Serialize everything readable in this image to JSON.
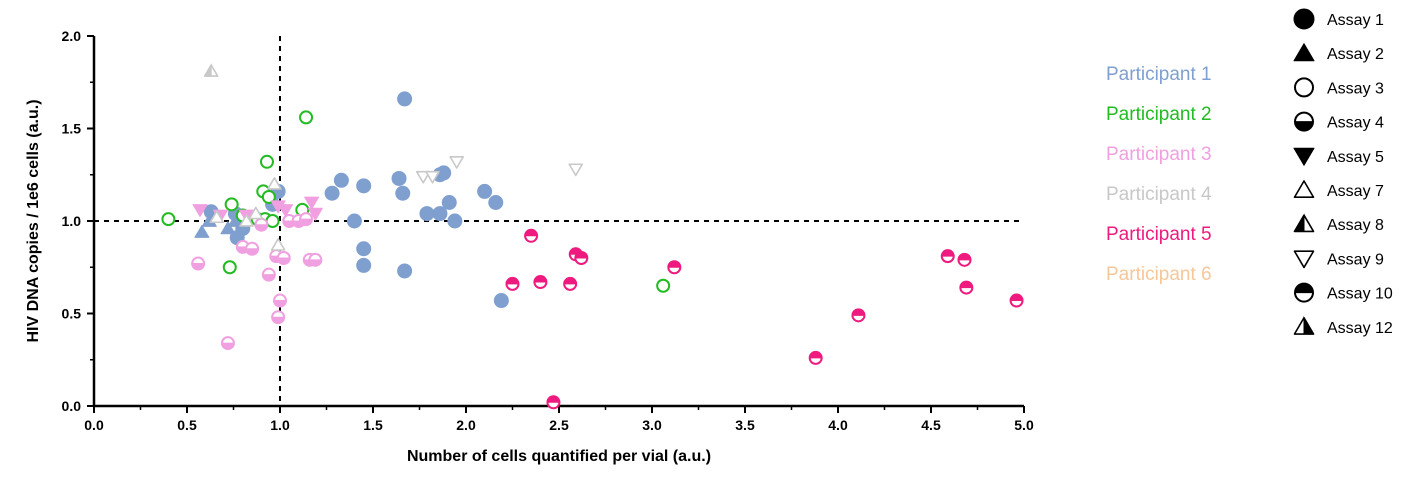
{
  "chart_data": {
    "type": "scatter",
    "title": "",
    "xlabel": "Number of cells quantified per vial (a.u.)",
    "ylabel": "HIV DNA copies / 1e6 cells (a.u.)",
    "xlim": [
      0,
      5
    ],
    "ylim": [
      0,
      2
    ],
    "x_ticks": [
      "0.0",
      "0.5",
      "1.0",
      "1.5",
      "2.0",
      "2.5",
      "3.0",
      "3.5",
      "4.0",
      "4.5",
      "5.0"
    ],
    "y_ticks": [
      "0.0",
      "0.5",
      "1.0",
      "1.5",
      "2.0"
    ],
    "reference_lines": {
      "x": 1.0,
      "y": 1.0,
      "style": "dashed"
    },
    "grid": false,
    "legend_placement": "right",
    "participants": [
      {
        "name": "Participant 1",
        "color": "#7f9fcf"
      },
      {
        "name": "Participant 2",
        "color": "#22bb22"
      },
      {
        "name": "Participant 3",
        "color": "#f0a0e0"
      },
      {
        "name": "Participant 4",
        "color": "#c8c8c8"
      },
      {
        "name": "Participant 5",
        "color": "#ee1a7f"
      },
      {
        "name": "Participant 6",
        "color": "#f5c79a"
      }
    ],
    "assays": [
      {
        "name": "Assay 1",
        "symbol": "circle-filled"
      },
      {
        "name": "Assay 2",
        "symbol": "triangle-up-filled"
      },
      {
        "name": "Assay 3",
        "symbol": "circle-open"
      },
      {
        "name": "Assay 4",
        "symbol": "circle-bottom-half"
      },
      {
        "name": "Assay 5",
        "symbol": "triangle-down-filled"
      },
      {
        "name": "Assay 7",
        "symbol": "triangle-up-open"
      },
      {
        "name": "Assay 8",
        "symbol": "triangle-up-left-half"
      },
      {
        "name": "Assay 9",
        "symbol": "triangle-down-open"
      },
      {
        "name": "Assay 10",
        "symbol": "circle-top-half"
      },
      {
        "name": "Assay 12",
        "symbol": "triangle-up-right-half"
      }
    ],
    "series": [
      {
        "participant": "Participant 1",
        "points": [
          {
            "x": 1.67,
            "y": 1.66,
            "assay": "Assay 1"
          },
          {
            "x": 1.33,
            "y": 1.22,
            "assay": "Assay 1"
          },
          {
            "x": 1.28,
            "y": 1.15,
            "assay": "Assay 1"
          },
          {
            "x": 1.45,
            "y": 1.19,
            "assay": "Assay 1"
          },
          {
            "x": 1.64,
            "y": 1.23,
            "assay": "Assay 1"
          },
          {
            "x": 1.66,
            "y": 1.15,
            "assay": "Assay 1"
          },
          {
            "x": 1.86,
            "y": 1.25,
            "assay": "Assay 1"
          },
          {
            "x": 1.88,
            "y": 1.26,
            "assay": "Assay 1"
          },
          {
            "x": 1.91,
            "y": 1.1,
            "assay": "Assay 1"
          },
          {
            "x": 1.79,
            "y": 1.04,
            "assay": "Assay 1"
          },
          {
            "x": 1.86,
            "y": 1.04,
            "assay": "Assay 1"
          },
          {
            "x": 1.94,
            "y": 1.0,
            "assay": "Assay 1"
          },
          {
            "x": 2.1,
            "y": 1.16,
            "assay": "Assay 1"
          },
          {
            "x": 2.16,
            "y": 1.1,
            "assay": "Assay 1"
          },
          {
            "x": 1.4,
            "y": 1.0,
            "assay": "Assay 1"
          },
          {
            "x": 1.45,
            "y": 0.85,
            "assay": "Assay 1"
          },
          {
            "x": 1.45,
            "y": 0.76,
            "assay": "Assay 1"
          },
          {
            "x": 1.67,
            "y": 0.73,
            "assay": "Assay 1"
          },
          {
            "x": 2.19,
            "y": 0.57,
            "assay": "Assay 1"
          },
          {
            "x": 0.63,
            "y": 1.05,
            "assay": "Assay 1"
          },
          {
            "x": 0.76,
            "y": 1.04,
            "assay": "Assay 1"
          },
          {
            "x": 0.8,
            "y": 0.96,
            "assay": "Assay 1"
          },
          {
            "x": 0.77,
            "y": 0.91,
            "assay": "Assay 1"
          },
          {
            "x": 0.99,
            "y": 1.16,
            "assay": "Assay 1"
          },
          {
            "x": 0.96,
            "y": 1.09,
            "assay": "Assay 1"
          },
          {
            "x": 0.58,
            "y": 0.94,
            "assay": "Assay 2"
          },
          {
            "x": 0.62,
            "y": 1.0,
            "assay": "Assay 2"
          },
          {
            "x": 0.72,
            "y": 0.96,
            "assay": "Assay 2"
          },
          {
            "x": 0.76,
            "y": 1.0,
            "assay": "Assay 2"
          }
        ]
      },
      {
        "participant": "Participant 2",
        "points": [
          {
            "x": 0.4,
            "y": 1.01,
            "assay": "Assay 3"
          },
          {
            "x": 1.14,
            "y": 1.56,
            "assay": "Assay 3"
          },
          {
            "x": 0.93,
            "y": 1.32,
            "assay": "Assay 3"
          },
          {
            "x": 0.91,
            "y": 1.16,
            "assay": "Assay 3"
          },
          {
            "x": 0.94,
            "y": 1.13,
            "assay": "Assay 3"
          },
          {
            "x": 0.74,
            "y": 1.09,
            "assay": "Assay 3"
          },
          {
            "x": 0.8,
            "y": 1.03,
            "assay": "Assay 3"
          },
          {
            "x": 0.88,
            "y": 1.01,
            "assay": "Assay 3"
          },
          {
            "x": 0.92,
            "y": 1.01,
            "assay": "Assay 3"
          },
          {
            "x": 0.96,
            "y": 1.0,
            "assay": "Assay 3"
          },
          {
            "x": 1.12,
            "y": 1.06,
            "assay": "Assay 3"
          },
          {
            "x": 0.73,
            "y": 0.75,
            "assay": "Assay 3"
          },
          {
            "x": 3.06,
            "y": 0.65,
            "assay": "Assay 3"
          }
        ]
      },
      {
        "participant": "Participant 3",
        "points": [
          {
            "x": 0.56,
            "y": 0.77,
            "assay": "Assay 4"
          },
          {
            "x": 0.72,
            "y": 0.34,
            "assay": "Assay 4"
          },
          {
            "x": 0.94,
            "y": 0.71,
            "assay": "Assay 4"
          },
          {
            "x": 0.98,
            "y": 0.81,
            "assay": "Assay 4"
          },
          {
            "x": 1.02,
            "y": 0.8,
            "assay": "Assay 4"
          },
          {
            "x": 1.0,
            "y": 0.57,
            "assay": "Assay 4"
          },
          {
            "x": 0.99,
            "y": 0.48,
            "assay": "Assay 4"
          },
          {
            "x": 1.16,
            "y": 0.79,
            "assay": "Assay 4"
          },
          {
            "x": 1.19,
            "y": 0.79,
            "assay": "Assay 4"
          },
          {
            "x": 0.8,
            "y": 0.86,
            "assay": "Assay 4"
          },
          {
            "x": 0.85,
            "y": 0.85,
            "assay": "Assay 4"
          },
          {
            "x": 0.9,
            "y": 0.98,
            "assay": "Assay 4"
          },
          {
            "x": 1.05,
            "y": 1.0,
            "assay": "Assay 4"
          },
          {
            "x": 1.1,
            "y": 1.0,
            "assay": "Assay 4"
          },
          {
            "x": 1.14,
            "y": 1.01,
            "assay": "Assay 4"
          },
          {
            "x": 0.57,
            "y": 1.06,
            "assay": "Assay 5"
          },
          {
            "x": 0.68,
            "y": 1.03,
            "assay": "Assay 5"
          },
          {
            "x": 0.82,
            "y": 1.03,
            "assay": "Assay 5"
          },
          {
            "x": 0.99,
            "y": 1.08,
            "assay": "Assay 5"
          },
          {
            "x": 1.17,
            "y": 1.1,
            "assay": "Assay 5"
          },
          {
            "x": 1.19,
            "y": 1.04,
            "assay": "Assay 5"
          },
          {
            "x": 1.03,
            "y": 1.06,
            "assay": "Assay 5"
          }
        ]
      },
      {
        "participant": "Participant 4",
        "points": [
          {
            "x": 0.63,
            "y": 1.81,
            "assay": "Assay 8"
          },
          {
            "x": 0.66,
            "y": 1.02,
            "assay": "Assay 7"
          },
          {
            "x": 0.82,
            "y": 1.0,
            "assay": "Assay 7"
          },
          {
            "x": 0.87,
            "y": 1.04,
            "assay": "Assay 7"
          },
          {
            "x": 0.97,
            "y": 1.2,
            "assay": "Assay 7"
          },
          {
            "x": 0.99,
            "y": 0.87,
            "assay": "Assay 7"
          },
          {
            "x": 1.77,
            "y": 1.24,
            "assay": "Assay 9"
          },
          {
            "x": 1.82,
            "y": 1.24,
            "assay": "Assay 9"
          },
          {
            "x": 1.95,
            "y": 1.32,
            "assay": "Assay 9"
          },
          {
            "x": 2.59,
            "y": 1.28,
            "assay": "Assay 9"
          }
        ]
      },
      {
        "participant": "Participant 5",
        "points": [
          {
            "x": 2.35,
            "y": 0.92,
            "assay": "Assay 10"
          },
          {
            "x": 2.59,
            "y": 0.82,
            "assay": "Assay 10"
          },
          {
            "x": 2.62,
            "y": 0.8,
            "assay": "Assay 10"
          },
          {
            "x": 2.25,
            "y": 0.66,
            "assay": "Assay 10"
          },
          {
            "x": 2.4,
            "y": 0.67,
            "assay": "Assay 10"
          },
          {
            "x": 2.56,
            "y": 0.66,
            "assay": "Assay 10"
          },
          {
            "x": 3.12,
            "y": 0.75,
            "assay": "Assay 10"
          },
          {
            "x": 2.47,
            "y": 0.02,
            "assay": "Assay 10"
          },
          {
            "x": 3.88,
            "y": 0.26,
            "assay": "Assay 10"
          },
          {
            "x": 4.11,
            "y": 0.49,
            "assay": "Assay 10"
          },
          {
            "x": 4.59,
            "y": 0.81,
            "assay": "Assay 10"
          },
          {
            "x": 4.68,
            "y": 0.79,
            "assay": "Assay 10"
          },
          {
            "x": 4.69,
            "y": 0.64,
            "assay": "Assay 10"
          },
          {
            "x": 4.96,
            "y": 0.57,
            "assay": "Assay 10"
          }
        ]
      }
    ]
  }
}
